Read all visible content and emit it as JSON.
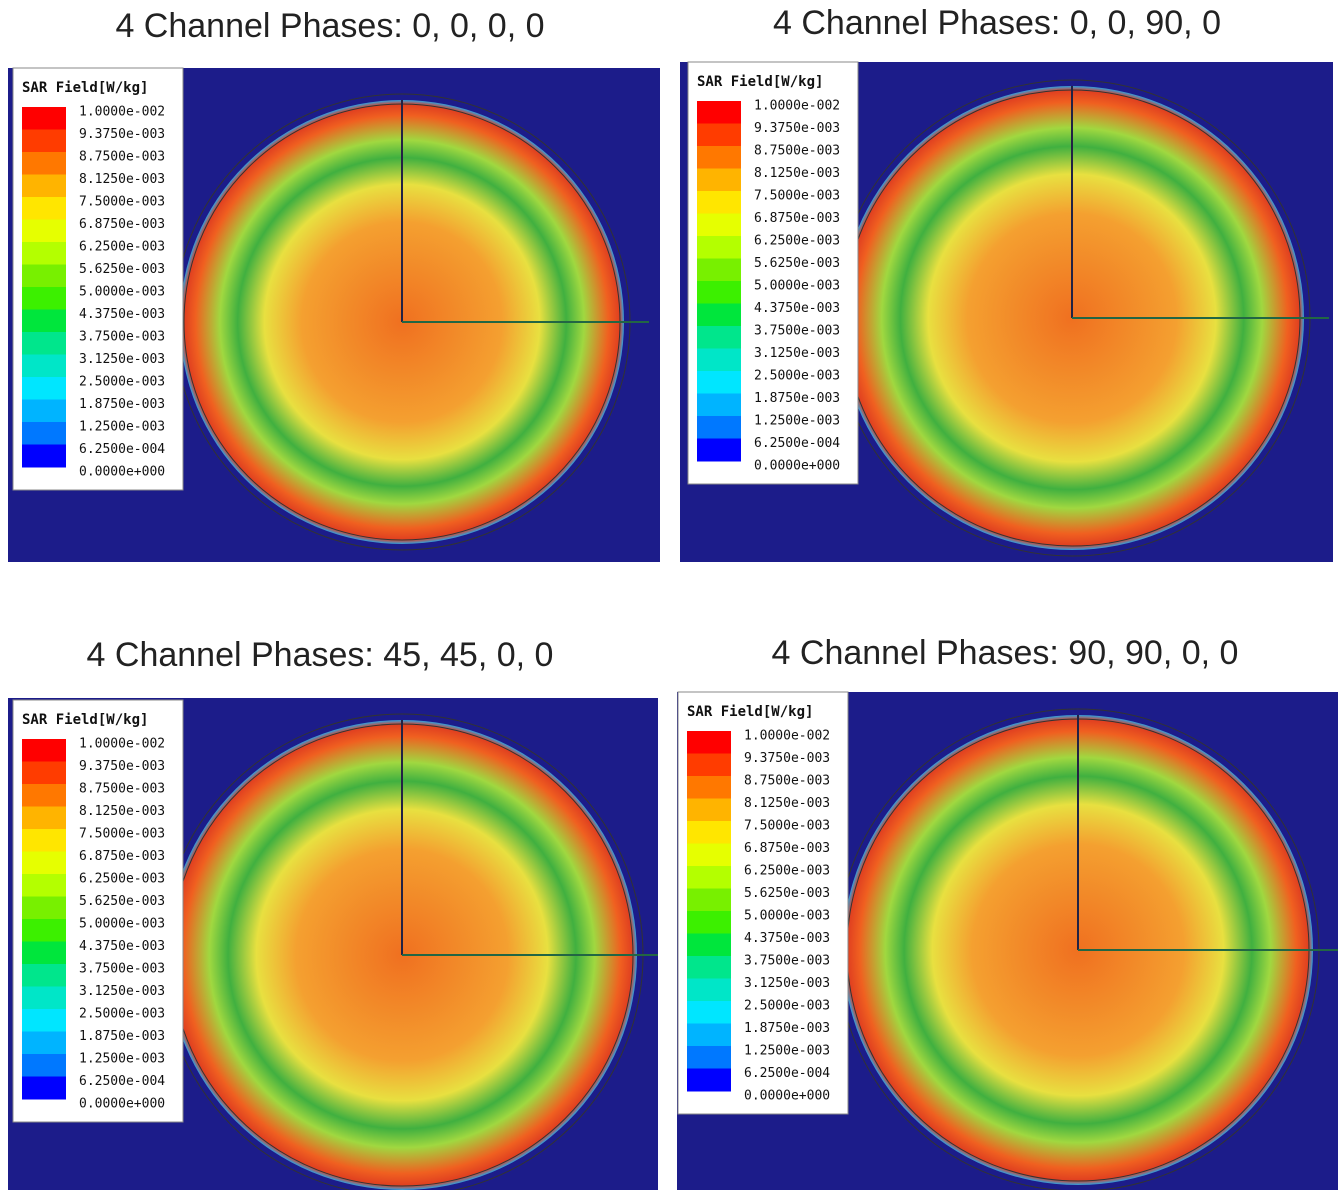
{
  "panels": [
    {
      "title": "4 Channel Phases: 0, 0, 0, 0",
      "legend": {
        "title": "SAR Field[W/kg]",
        "labels": [
          "1.0000e-002",
          "9.3750e-003",
          "8.7500e-003",
          "8.1250e-003",
          "7.5000e-003",
          "6.8750e-003",
          "6.2500e-003",
          "5.6250e-003",
          "5.0000e-003",
          "4.3750e-003",
          "3.7500e-003",
          "3.1250e-003",
          "2.5000e-003",
          "1.8750e-003",
          "1.2500e-003",
          "6.2500e-004",
          "0.0000e+000"
        ]
      }
    },
    {
      "title": "4 Channel Phases: 0, 0, 90, 0",
      "legend": {
        "title": "SAR Field[W/kg]",
        "labels": [
          "1.0000e-002",
          "9.3750e-003",
          "8.7500e-003",
          "8.1250e-003",
          "7.5000e-003",
          "6.8750e-003",
          "6.2500e-003",
          "5.6250e-003",
          "5.0000e-003",
          "4.3750e-003",
          "3.7500e-003",
          "3.1250e-003",
          "2.5000e-003",
          "1.8750e-003",
          "1.2500e-003",
          "6.2500e-004",
          "0.0000e+000"
        ]
      }
    },
    {
      "title": "4 Channel Phases: 45, 45, 0, 0",
      "legend": {
        "title": "SAR Field[W/kg]",
        "labels": [
          "1.0000e-002",
          "9.3750e-003",
          "8.7500e-003",
          "8.1250e-003",
          "7.5000e-003",
          "6.8750e-003",
          "6.2500e-003",
          "5.6250e-003",
          "5.0000e-003",
          "4.3750e-003",
          "3.7500e-003",
          "3.1250e-003",
          "2.5000e-003",
          "1.8750e-003",
          "1.2500e-003",
          "6.2500e-004",
          "0.0000e+000"
        ]
      }
    },
    {
      "title": "4 Channel Phases: 90, 90, 0, 0",
      "legend": {
        "title": "SAR Field[W/kg]",
        "labels": [
          "1.0000e-002",
          "9.3750e-003",
          "8.7500e-003",
          "8.1250e-003",
          "7.5000e-003",
          "6.8750e-003",
          "6.2500e-003",
          "5.6250e-003",
          "5.0000e-003",
          "4.3750e-003",
          "3.7500e-003",
          "3.1250e-003",
          "2.5000e-003",
          "1.8750e-003",
          "1.2500e-003",
          "6.2500e-004",
          "0.0000e+000"
        ]
      }
    }
  ],
  "colorbar_colors": [
    "#ff0000",
    "#ff3c00",
    "#ff7800",
    "#ffb400",
    "#ffe600",
    "#e6ff00",
    "#b4ff00",
    "#78f000",
    "#3cf000",
    "#00e63c",
    "#00e68c",
    "#00e6c8",
    "#00e6ff",
    "#00b4ff",
    "#0078ff",
    "#0000ff"
  ]
}
